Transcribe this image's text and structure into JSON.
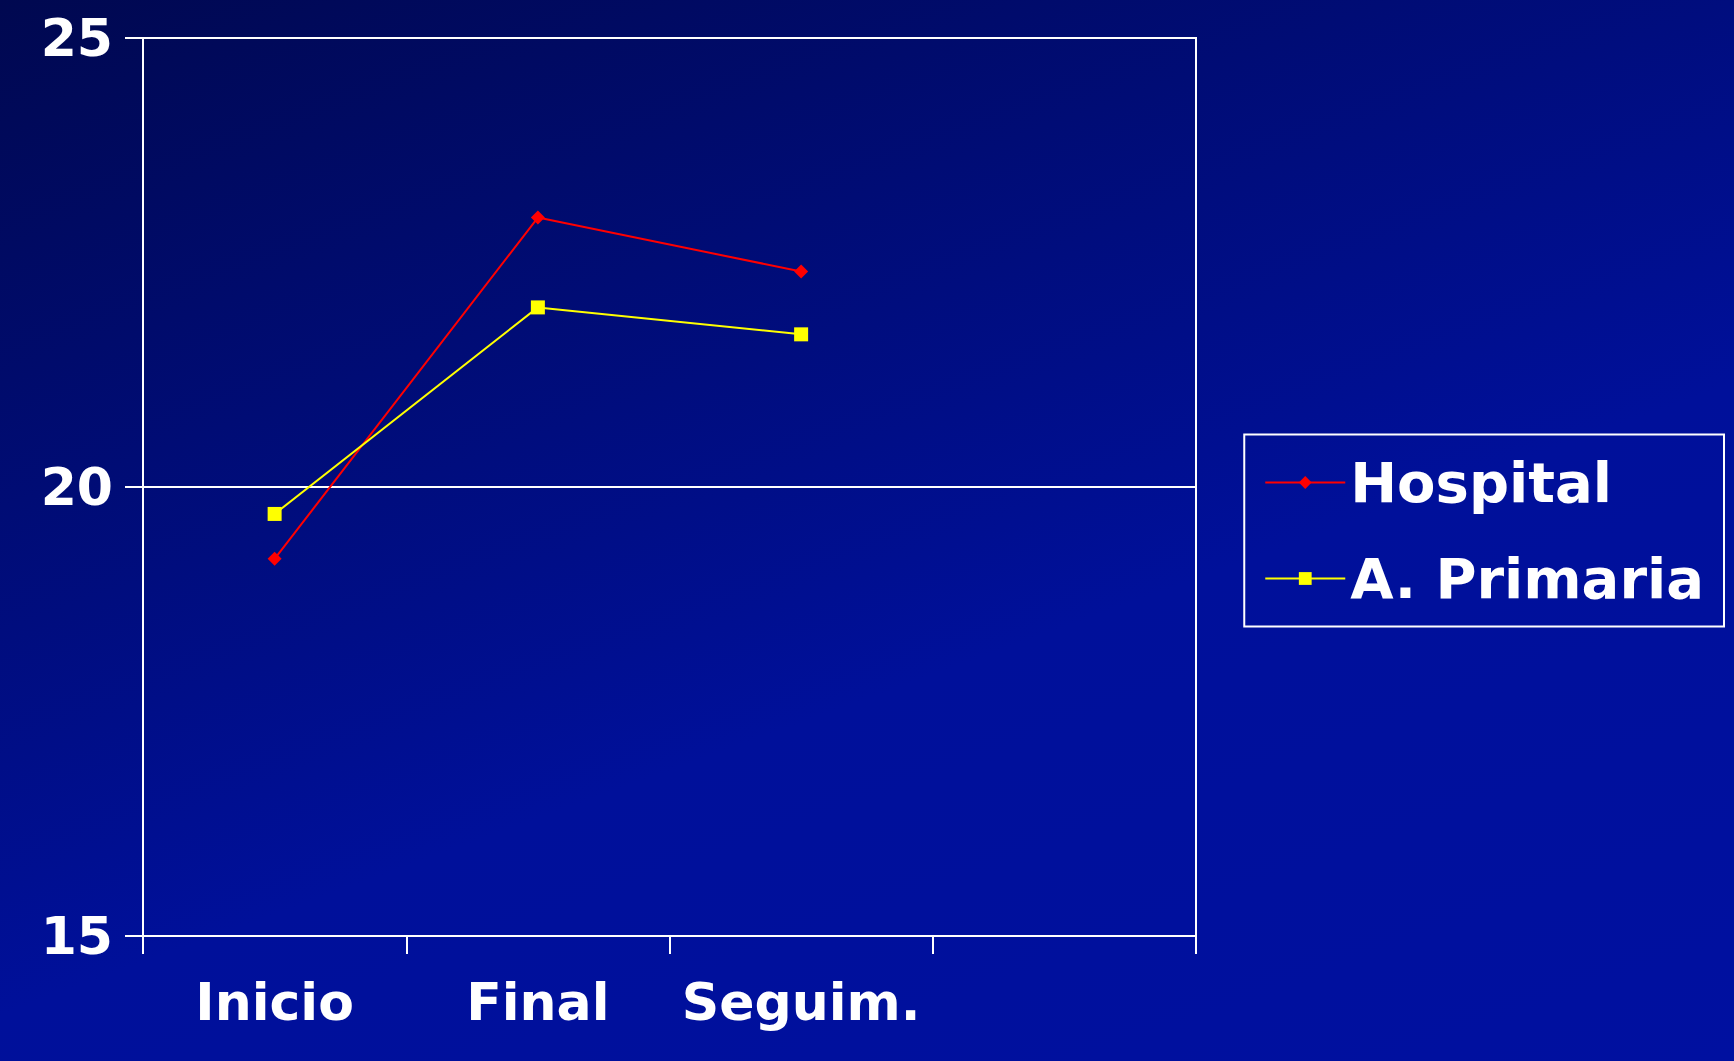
{
  "chart_data": {
    "type": "line",
    "categories": [
      "Inicio",
      "Final",
      "Seguim.",
      null
    ],
    "series": [
      {
        "name": "Hospital",
        "color": "#ff0000",
        "marker": "diamond",
        "values": [
          19.2,
          23.0,
          22.4,
          null
        ]
      },
      {
        "name": "A. Primaria",
        "color": "#ffff00",
        "marker": "square",
        "values": [
          19.7,
          22.0,
          21.7,
          null
        ]
      }
    ],
    "ylim": [
      15,
      25
    ],
    "yticks": [
      15,
      20,
      25
    ],
    "grid": "y",
    "legend": "right",
    "line_style": "solid"
  }
}
